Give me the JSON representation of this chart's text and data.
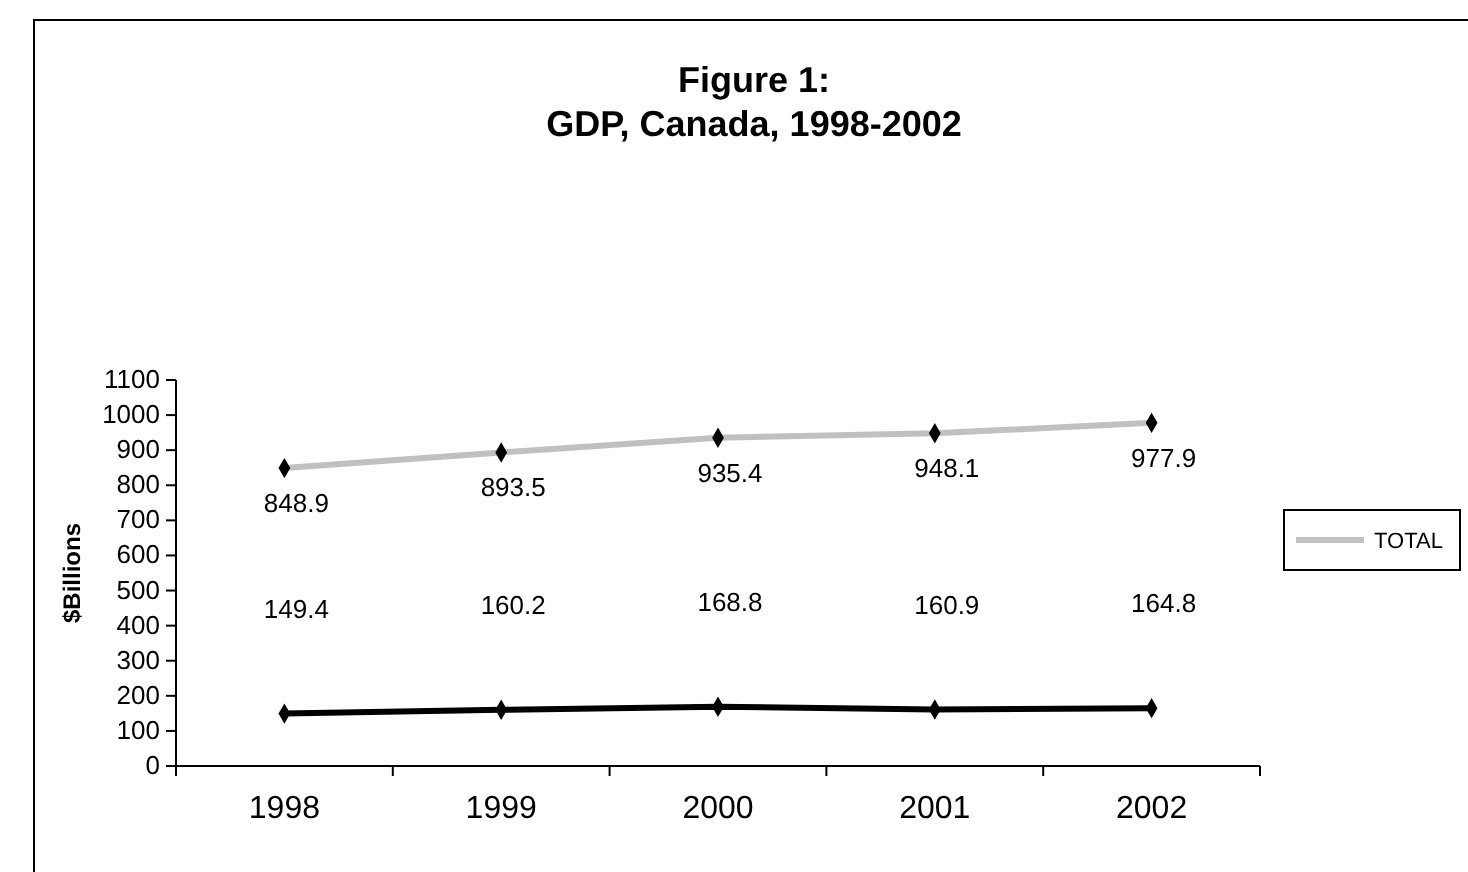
{
  "chart_data": {
    "type": "line",
    "title": "Figure 1:\nGDP, Canada, 1998-2002",
    "ylabel": "$Billions",
    "categories": [
      "1998",
      "1999",
      "2000",
      "2001",
      "2002"
    ],
    "series": [
      {
        "name": "TOTAL",
        "color": "#c0c0c0",
        "values": [
          848.9,
          893.5,
          935.4,
          948.1,
          977.9
        ]
      },
      {
        "color": "#000000",
        "values": [
          149.4,
          160.2,
          168.8,
          160.9,
          164.8
        ]
      }
    ],
    "ylim": [
      0,
      1100
    ],
    "yticks": [
      0,
      100,
      200,
      300,
      400,
      500,
      600,
      700,
      800,
      900,
      1000,
      1100
    ],
    "data_labels": true,
    "legend": "right",
    "marker": "diamond",
    "grid": false
  }
}
